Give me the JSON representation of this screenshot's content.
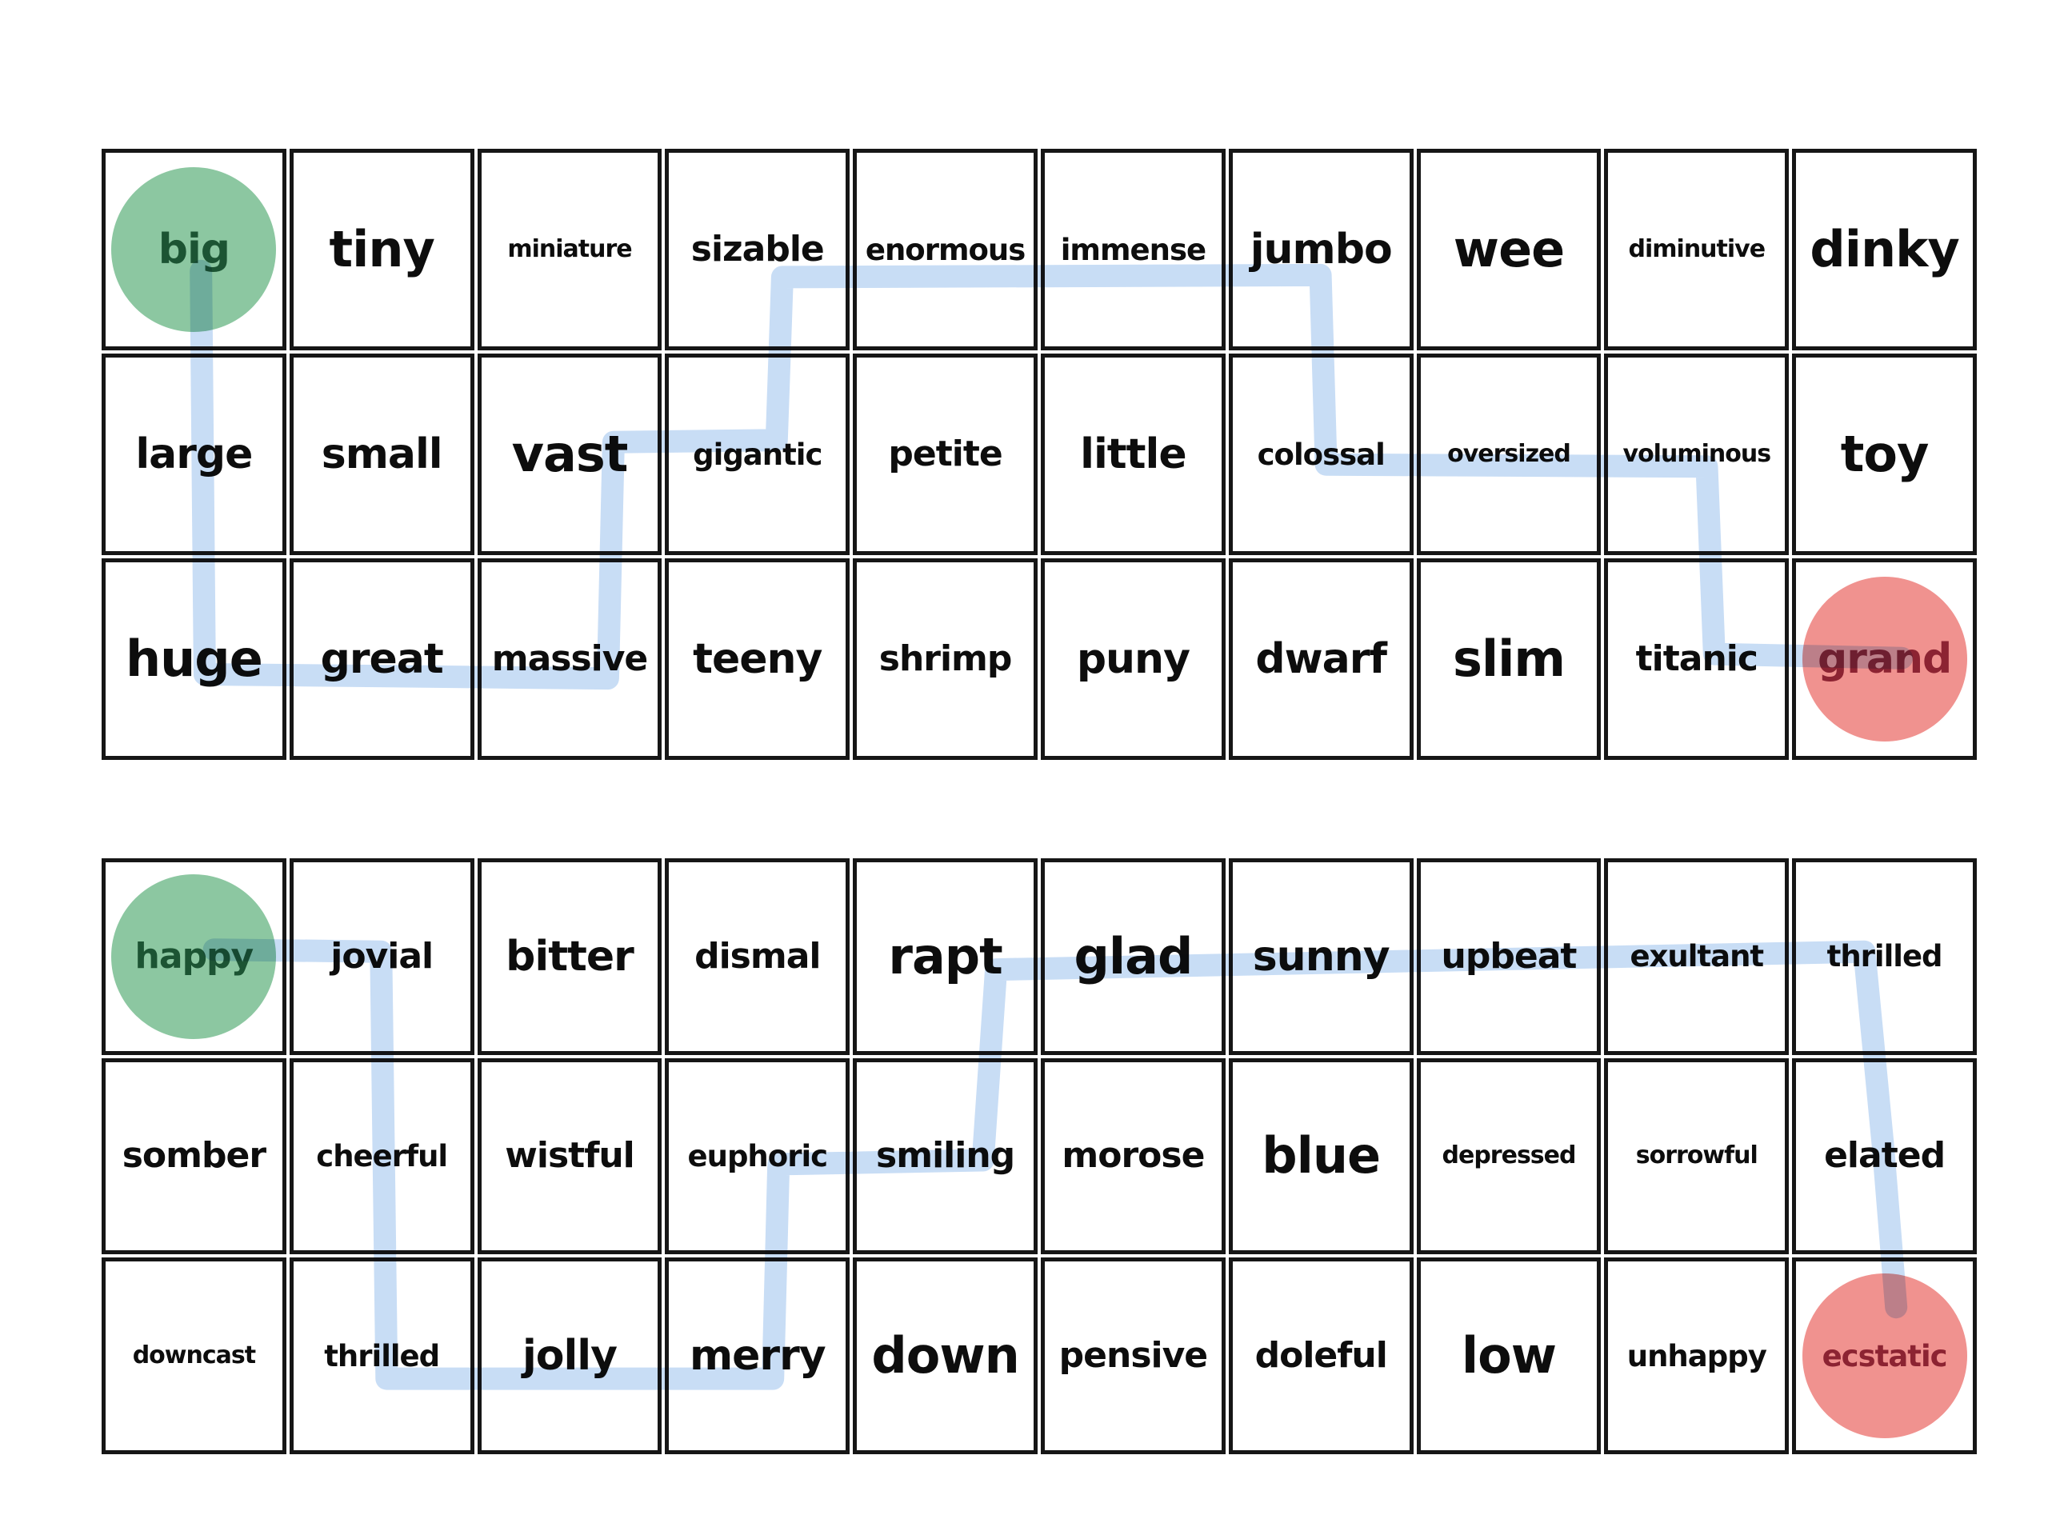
{
  "document": {
    "kind": "synonym word maze worksheet",
    "background": "#ffffff"
  },
  "colors": {
    "grid_border": "#161616",
    "word_color": "#0d0d0d",
    "path_highlight": "#c5dbf5",
    "start_circle": "#8cc7a1",
    "start_word": "#1c5433",
    "end_circle": "#f0928f",
    "end_word": "#8c2332"
  },
  "path_style": {
    "stroke_width": 28
  },
  "mazes": [
    {
      "name": "size-synonym-maze",
      "theme_word": "big",
      "start": "big",
      "end": "grand",
      "columns": 10,
      "rows": 3,
      "cells": [
        [
          {
            "w": "big",
            "s": "xl",
            "m": "start"
          },
          {
            "w": "tiny",
            "s": "xxl"
          },
          {
            "w": "miniature",
            "s": "sm"
          },
          {
            "w": "sizable",
            "s": "lg"
          },
          {
            "w": "enormous",
            "s": "md"
          },
          {
            "w": "immense",
            "s": "md"
          },
          {
            "w": "jumbo",
            "s": "xl"
          },
          {
            "w": "wee",
            "s": "xxl"
          },
          {
            "w": "diminutive",
            "s": "sm"
          },
          {
            "w": "dinky",
            "s": "xxl"
          }
        ],
        [
          {
            "w": "large",
            "s": "xl"
          },
          {
            "w": "small",
            "s": "xl"
          },
          {
            "w": "vast",
            "s": "xxl"
          },
          {
            "w": "gigantic",
            "s": "md"
          },
          {
            "w": "petite",
            "s": "lg"
          },
          {
            "w": "little",
            "s": "xl"
          },
          {
            "w": "colossal",
            "s": "md"
          },
          {
            "w": "oversized",
            "s": "sm"
          },
          {
            "w": "voluminous",
            "s": "sm"
          },
          {
            "w": "toy",
            "s": "xxl"
          }
        ],
        [
          {
            "w": "huge",
            "s": "xxl"
          },
          {
            "w": "great",
            "s": "xl"
          },
          {
            "w": "massive",
            "s": "lg"
          },
          {
            "w": "teeny",
            "s": "xl"
          },
          {
            "w": "shrimp",
            "s": "lg"
          },
          {
            "w": "puny",
            "s": "xl"
          },
          {
            "w": "dwarf",
            "s": "xl"
          },
          {
            "w": "slim",
            "s": "xxl"
          },
          {
            "w": "titanic",
            "s": "lg"
          },
          {
            "w": "grand",
            "s": "xl",
            "m": "end"
          }
        ]
      ],
      "solution_word_sequence": [
        "big",
        "large",
        "huge",
        "great",
        "massive",
        "vast",
        "gigantic",
        "sizable",
        "enormous",
        "immense",
        "jumbo",
        "colossal",
        "oversized",
        "voluminous",
        "titanic",
        "grand"
      ],
      "path_points": [
        [
          0.53,
          0.6
        ],
        [
          0.55,
          2.58
        ],
        [
          2.7,
          2.6
        ],
        [
          2.73,
          1.44
        ],
        [
          3.6,
          1.43
        ],
        [
          3.63,
          0.63
        ],
        [
          6.5,
          0.62
        ],
        [
          6.53,
          1.55
        ],
        [
          8.56,
          1.56
        ],
        [
          8.6,
          2.48
        ],
        [
          9.6,
          2.5
        ]
      ]
    },
    {
      "name": "happy-synonym-maze",
      "theme_word": "happy",
      "start": "happy",
      "end": "ecstatic",
      "columns": 10,
      "rows": 3,
      "cells": [
        [
          {
            "w": "happy",
            "s": "lg",
            "m": "start"
          },
          {
            "w": "jovial",
            "s": "lg"
          },
          {
            "w": "bitter",
            "s": "xl"
          },
          {
            "w": "dismal",
            "s": "lg"
          },
          {
            "w": "rapt",
            "s": "xxl"
          },
          {
            "w": "glad",
            "s": "xxl"
          },
          {
            "w": "sunny",
            "s": "xl"
          },
          {
            "w": "upbeat",
            "s": "lg"
          },
          {
            "w": "exultant",
            "s": "md"
          },
          {
            "w": "thrilled",
            "s": "md"
          }
        ],
        [
          {
            "w": "somber",
            "s": "lg"
          },
          {
            "w": "cheerful",
            "s": "md"
          },
          {
            "w": "wistful",
            "s": "lg"
          },
          {
            "w": "euphoric",
            "s": "md"
          },
          {
            "w": "smiling",
            "s": "lg"
          },
          {
            "w": "morose",
            "s": "lg"
          },
          {
            "w": "blue",
            "s": "xxl"
          },
          {
            "w": "depressed",
            "s": "sm"
          },
          {
            "w": "sorrowful",
            "s": "sm"
          },
          {
            "w": "elated",
            "s": "lg"
          }
        ],
        [
          {
            "w": "downcast",
            "s": "sm"
          },
          {
            "w": "thrilled",
            "s": "md"
          },
          {
            "w": "jolly",
            "s": "xl"
          },
          {
            "w": "merry",
            "s": "xl"
          },
          {
            "w": "down",
            "s": "xxl"
          },
          {
            "w": "pensive",
            "s": "lg"
          },
          {
            "w": "doleful",
            "s": "lg"
          },
          {
            "w": "low",
            "s": "xxl"
          },
          {
            "w": "unhappy",
            "s": "md"
          },
          {
            "w": "ecstatic",
            "s": "md",
            "m": "end"
          }
        ]
      ],
      "solution_word_sequence": [
        "happy",
        "jovial",
        "cheerful",
        "thrilled",
        "jolly",
        "merry",
        "euphoric",
        "smiling",
        "rapt",
        "glad",
        "sunny",
        "upbeat",
        "exultant",
        "thrilled",
        "elated",
        "ecstatic"
      ],
      "path_points": [
        [
          0.6,
          0.46
        ],
        [
          1.49,
          0.47
        ],
        [
          1.52,
          2.62
        ],
        [
          3.58,
          2.62
        ],
        [
          3.61,
          1.54
        ],
        [
          4.7,
          1.52
        ],
        [
          4.77,
          0.56
        ],
        [
          9.4,
          0.47
        ],
        [
          9.5,
          1.45
        ],
        [
          9.57,
          2.26
        ]
      ]
    }
  ]
}
